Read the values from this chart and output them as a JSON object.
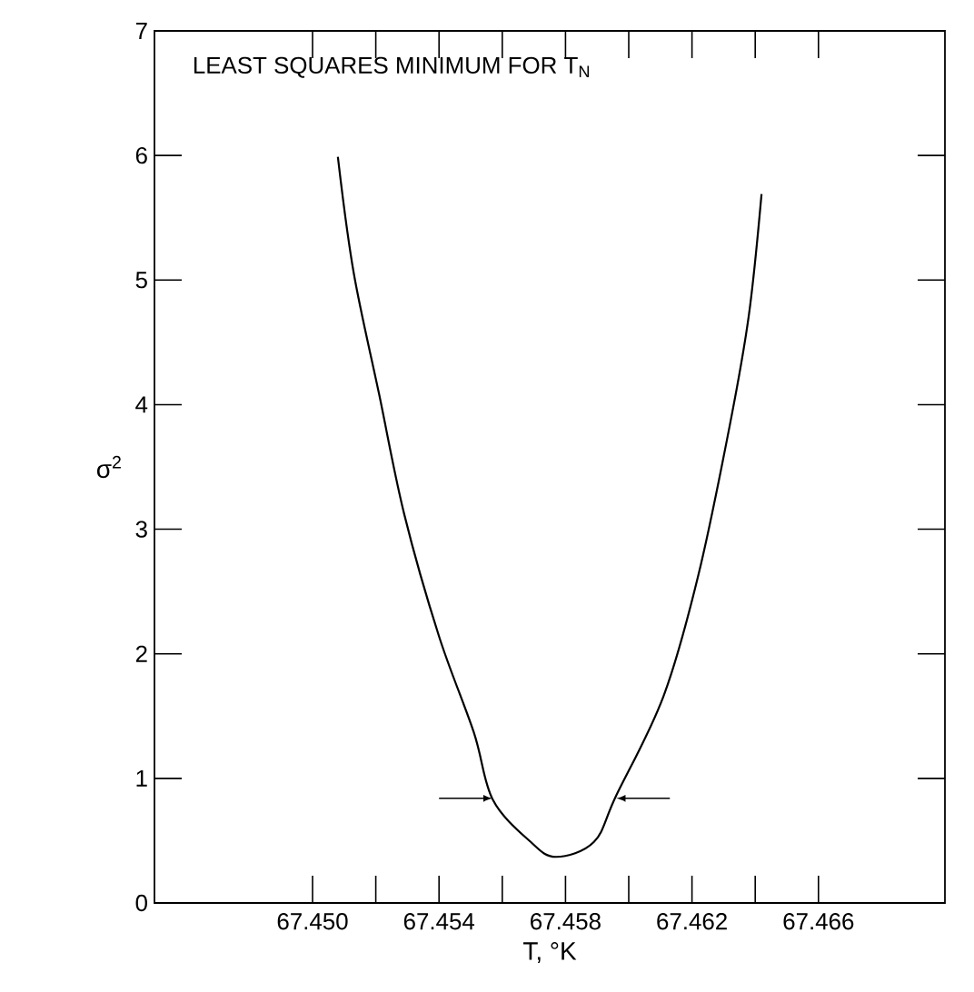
{
  "chart_data": {
    "type": "line",
    "title": "LEAST SQUARES MINIMUM FOR T$_{N}$",
    "xlabel": "T, °K",
    "ylabel": "σ$^{2}$",
    "x": [
      67.4508,
      67.4513,
      67.4521,
      67.4529,
      67.454,
      67.4551,
      67.4557,
      67.4569,
      67.4577,
      67.4589,
      67.4596,
      67.4611,
      67.4622,
      67.4632,
      67.4638,
      67.4642
    ],
    "values": [
      5.99,
      5.06,
      4.09,
      3.12,
      2.14,
      1.37,
      0.83,
      0.49,
      0.37,
      0.49,
      0.86,
      1.66,
      2.63,
      3.84,
      4.72,
      5.69
    ],
    "color": "#000000",
    "xlim": [
      67.445,
      67.47
    ],
    "ylim": [
      0,
      7
    ],
    "xticks": [
      {
        "value": 67.45,
        "label": "67.450"
      },
      {
        "value": 67.452,
        "label": null
      },
      {
        "value": 67.454,
        "label": "67.454"
      },
      {
        "value": 67.456,
        "label": null
      },
      {
        "value": 67.458,
        "label": "67.458"
      },
      {
        "value": 67.46,
        "label": null
      },
      {
        "value": 67.462,
        "label": "67.462"
      },
      {
        "value": 67.464,
        "label": null
      },
      {
        "value": 67.466,
        "label": "67.466"
      }
    ],
    "yticks": [
      0,
      1,
      2,
      3,
      4,
      5,
      6,
      7
    ]
  }
}
